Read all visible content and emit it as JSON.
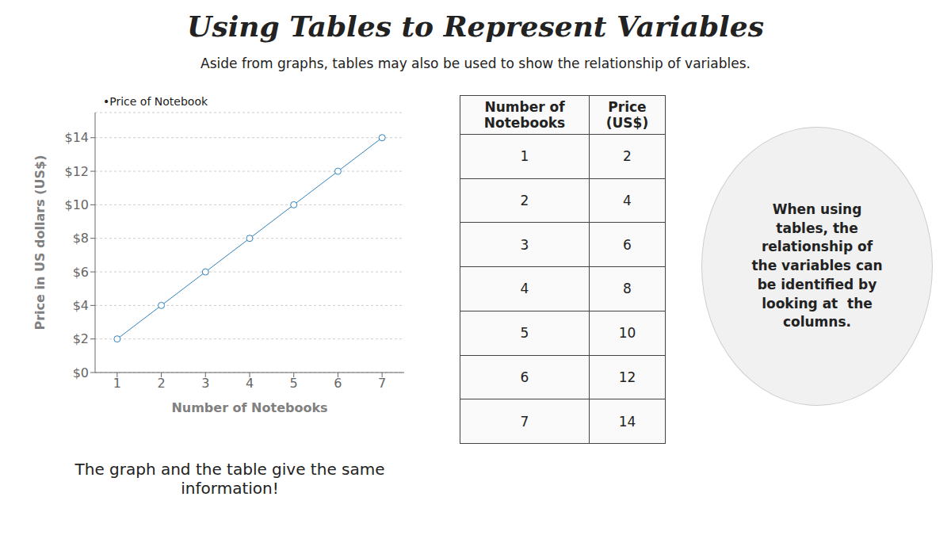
{
  "chart_data": [
    {
      "type": "line",
      "title": "Using Tables to Represent Variables",
      "subtitle": "Aside from graphs, tables may also be used to show the relationship of variables.",
      "xlabel": "Number of Notebooks",
      "ylabel": "Price in US dollars (US$)",
      "x": [
        1,
        2,
        3,
        4,
        5,
        6,
        7
      ],
      "series": [
        {
          "name": "•Price of Notebook",
          "values": [
            2,
            4,
            6,
            8,
            10,
            12,
            14
          ]
        }
      ],
      "xlim": [
        0.5,
        7.5
      ],
      "xticks": [
        1,
        2,
        3,
        4,
        5,
        6,
        7
      ],
      "ylim": [
        0,
        15.5
      ],
      "yticks": [
        {
          "value": 0,
          "label": "$0"
        },
        {
          "value": 2,
          "label": "$2"
        },
        {
          "value": 4,
          "label": "$4"
        },
        {
          "value": 6,
          "label": "$6"
        },
        {
          "value": 8,
          "label": "$8"
        },
        {
          "value": 10,
          "label": "$10"
        },
        {
          "value": 12,
          "label": "$12"
        },
        {
          "value": 14,
          "label": "$14"
        }
      ],
      "grid": "y",
      "legend": "upper left",
      "annotations": [
        "When using\ntables, the\nrelationship of\nthe variables can\nbe identified by\nlooking at  the\ncolumns.",
        "The graph and the table give the same\ninformation!"
      ]
    },
    {
      "type": "table",
      "xlabel": "Number of\nNotebooks",
      "ylabel": "Price\n(US$)",
      "x": [
        1,
        2,
        3,
        4,
        5,
        6,
        7
      ],
      "values": [
        2,
        4,
        6,
        8,
        10,
        12,
        14
      ]
    }
  ]
}
